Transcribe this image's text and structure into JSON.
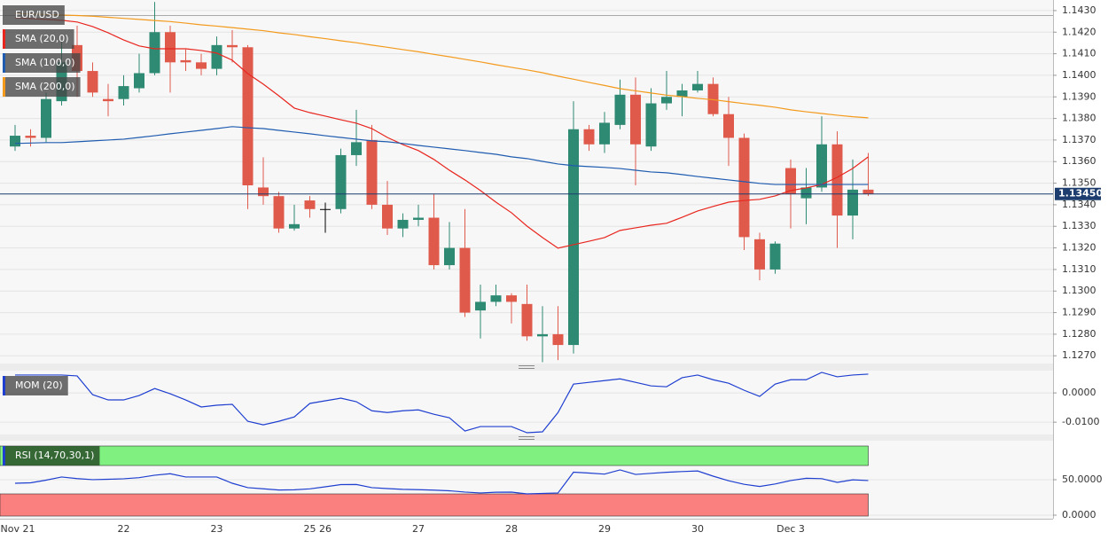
{
  "chart_data": {
    "type": "candlestick",
    "title": "EUR/USD",
    "categories": [
      "Nov 21",
      null,
      null,
      null,
      null,
      null,
      null,
      "22",
      null,
      null,
      null,
      null,
      null,
      "23",
      null,
      null,
      null,
      null,
      null,
      "25",
      "26",
      null,
      null,
      null,
      null,
      null,
      "27",
      null,
      null,
      null,
      null,
      null,
      "28",
      null,
      null,
      null,
      null,
      null,
      "29",
      null,
      null,
      null,
      null,
      null,
      "30",
      null,
      null,
      null,
      null,
      null,
      "Dec 3",
      null,
      null,
      null,
      null,
      null
    ],
    "open": [
      1.1367,
      1.1372,
      1.1371,
      1.1388,
      1.1414,
      1.1402,
      1.1389,
      1.1389,
      1.1394,
      1.1401,
      1.142,
      1.1407,
      1.1406,
      1.1403,
      1.1414,
      1.1413,
      1.1348,
      1.1344,
      1.1329,
      1.1342,
      1.1338,
      1.1338,
      1.1363,
      1.137,
      1.134,
      1.1329,
      1.1333,
      1.1334,
      1.1312,
      1.132,
      1.1291,
      1.1295,
      1.1298,
      1.1294,
      1.1279,
      1.128,
      1.1275,
      1.1375,
      1.1368,
      1.1377,
      1.1391,
      1.1367,
      1.1387,
      1.139,
      1.1393,
      1.1396,
      1.1382,
      1.1371,
      1.1324,
      1.131,
      1.1357,
      1.1343,
      1.1348,
      1.1368,
      1.1335,
      1.1347
    ],
    "high": [
      1.1377,
      1.1375,
      1.1392,
      1.1416,
      1.1423,
      1.1406,
      1.1396,
      1.14,
      1.141,
      1.1434,
      1.1423,
      1.1412,
      1.141,
      1.1418,
      1.1421,
      1.1414,
      1.1362,
      1.1346,
      1.134,
      1.1344,
      1.1341,
      1.1366,
      1.1384,
      1.1377,
      1.1351,
      1.1336,
      1.134,
      1.1345,
      1.1332,
      1.1338,
      1.1303,
      1.1303,
      1.1299,
      1.1303,
      1.1293,
      1.1293,
      1.1388,
      1.1377,
      1.1383,
      1.1398,
      1.1399,
      1.1394,
      1.1402,
      1.1396,
      1.1402,
      1.1399,
      1.139,
      1.1373,
      1.1327,
      1.1323,
      1.1361,
      1.1357,
      1.1381,
      1.1374,
      1.1361,
      1.1364
    ],
    "low": [
      1.1365,
      1.1367,
      1.1369,
      1.1386,
      1.139,
      1.139,
      1.1381,
      1.1386,
      1.1392,
      1.14,
      1.1392,
      1.1402,
      1.14,
      1.14,
      1.1406,
      1.1338,
      1.134,
      1.1327,
      1.1328,
      1.1334,
      1.1327,
      1.1336,
      1.1358,
      1.1338,
      1.1326,
      1.1325,
      1.133,
      1.131,
      1.131,
      1.1288,
      1.1278,
      1.1293,
      1.1285,
      1.1277,
      1.1267,
      1.1268,
      1.1271,
      1.1365,
      1.1364,
      1.1375,
      1.1349,
      1.1365,
      1.1384,
      1.1381,
      1.1392,
      1.1381,
      1.1358,
      1.1319,
      1.1305,
      1.1308,
      1.1329,
      1.1331,
      1.1346,
      1.132,
      1.1324,
      1.1344
    ],
    "close": [
      1.1372,
      1.1371,
      1.1389,
      1.1406,
      1.1402,
      1.1392,
      1.1388,
      1.1395,
      1.1401,
      1.142,
      1.1406,
      1.1406,
      1.1403,
      1.1414,
      1.1413,
      1.1349,
      1.1344,
      1.1329,
      1.1331,
      1.1338,
      1.1338,
      1.1363,
      1.1369,
      1.134,
      1.1329,
      1.1333,
      1.1334,
      1.1312,
      1.132,
      1.129,
      1.1295,
      1.1298,
      1.1295,
      1.1279,
      1.128,
      1.1275,
      1.1375,
      1.1368,
      1.1378,
      1.1391,
      1.1368,
      1.1387,
      1.139,
      1.1393,
      1.1396,
      1.1382,
      1.1371,
      1.1325,
      1.131,
      1.1322,
      1.1345,
      1.1348,
      1.1368,
      1.1335,
      1.1347,
      1.1345
    ],
    "up_color": "#2f8a73",
    "down_color": "#e05a4c",
    "doji_color": "#000000",
    "ylim": [
      1.12664,
      1.14349
    ],
    "yticks": [
      {
        "value": 1.127,
        "label": "1.1270"
      },
      {
        "value": 1.128,
        "label": "1.1280"
      },
      {
        "value": 1.129,
        "label": "1.1290"
      },
      {
        "value": 1.13,
        "label": "1.1300"
      },
      {
        "value": 1.131,
        "label": "1.1310"
      },
      {
        "value": 1.132,
        "label": "1.1320"
      },
      {
        "value": 1.133,
        "label": "1.1330"
      },
      {
        "value": 1.134,
        "label": "1.1340"
      },
      {
        "value": 1.135,
        "label": "1.1350"
      },
      {
        "value": 1.136,
        "label": "1.1360"
      },
      {
        "value": 1.137,
        "label": "1.1370"
      },
      {
        "value": 1.138,
        "label": "1.1380"
      },
      {
        "value": 1.139,
        "label": "1.1390"
      },
      {
        "value": 1.14,
        "label": "1.1400"
      },
      {
        "value": 1.141,
        "label": "1.1410"
      },
      {
        "value": 1.142,
        "label": "1.1420"
      },
      {
        "value": 1.143,
        "label": "1.1430"
      }
    ],
    "grid": true,
    "last_price": {
      "value": 1.1345,
      "label": "1.13450",
      "color": "#1c3d6e"
    },
    "series": [
      {
        "name": "SMA (20,0)",
        "color": "#e8261e",
        "values": [
          1.14267,
          1.14263,
          1.14259,
          1.14255,
          1.14247,
          1.14226,
          1.14197,
          1.14164,
          1.14136,
          1.14123,
          1.14123,
          1.14123,
          1.14115,
          1.14103,
          1.1407,
          1.14008,
          1.13959,
          1.13905,
          1.13848,
          1.13827,
          1.13811,
          1.13794,
          1.13778,
          1.13753,
          1.13712,
          1.13679,
          1.13651,
          1.1361,
          1.1356,
          1.13515,
          1.13466,
          1.13412,
          1.13363,
          1.13301,
          1.13248,
          1.13199,
          1.13215,
          1.13231,
          1.13248,
          1.13281,
          1.13293,
          1.13305,
          1.13314,
          1.13342,
          1.13371,
          1.13392,
          1.13412,
          1.1342,
          1.13425,
          1.13441,
          1.13466,
          1.13478,
          1.13494,
          1.13527,
          1.13568,
          1.13622
        ]
      },
      {
        "name": "SMA (100,0)",
        "color": "#1f5cb0",
        "values": [
          1.13684,
          1.13686,
          1.13688,
          1.13688,
          1.13692,
          1.13696,
          1.137,
          1.13704,
          1.13712,
          1.1372,
          1.13729,
          1.13737,
          1.13745,
          1.13753,
          1.13762,
          1.13757,
          1.13753,
          1.13745,
          1.13737,
          1.13729,
          1.1372,
          1.13712,
          1.13704,
          1.13696,
          1.13692,
          1.13684,
          1.13675,
          1.13667,
          1.13659,
          1.13651,
          1.13642,
          1.13634,
          1.13622,
          1.13614,
          1.13601,
          1.13589,
          1.13581,
          1.13577,
          1.13573,
          1.13568,
          1.1356,
          1.13552,
          1.13548,
          1.1354,
          1.13531,
          1.13523,
          1.13515,
          1.13507,
          1.13499,
          1.13494,
          1.13494,
          1.13494,
          1.13494,
          1.13494,
          1.13494,
          1.13494
        ]
      },
      {
        "name": "SMA (200,0)",
        "color": "#f39a1c",
        "values": [
          1.14287,
          1.14284,
          1.14282,
          1.14279,
          1.14277,
          1.14274,
          1.14269,
          1.14264,
          1.14259,
          1.14254,
          1.14249,
          1.14242,
          1.14234,
          1.14228,
          1.14221,
          1.14214,
          1.14207,
          1.14197,
          1.14189,
          1.14179,
          1.1417,
          1.1416,
          1.14151,
          1.1414,
          1.1413,
          1.14119,
          1.14109,
          1.14097,
          1.14086,
          1.14074,
          1.14062,
          1.14049,
          1.14037,
          1.14025,
          1.14012,
          1.13996,
          1.13982,
          1.13967,
          1.13953,
          1.13938,
          1.13928,
          1.13918,
          1.13908,
          1.13901,
          1.13893,
          1.13887,
          1.13878,
          1.13869,
          1.13861,
          1.13852,
          1.1384,
          1.13831,
          1.13823,
          1.13815,
          1.13808,
          1.13803
        ]
      }
    ],
    "indicators": [
      {
        "type": "line",
        "name": "MOM (20)",
        "color": "#1f3fd0",
        "ylim": [
          -0.0142,
          0.0076
        ],
        "yticks": [
          {
            "value": 0,
            "label": "0.0000"
          },
          {
            "value": -0.01,
            "label": "-0.0100"
          }
        ],
        "values": [
          0.0061,
          0.0061,
          0.0061,
          0.0061,
          0.0058,
          -0.0006,
          -0.0024,
          -0.0024,
          -0.0009,
          0.0015,
          -0.0003,
          -0.0024,
          -0.0048,
          -0.0042,
          -0.0039,
          -0.0097,
          -0.0109,
          -0.0097,
          -0.0082,
          -0.0036,
          -0.0027,
          -0.0018,
          -0.003,
          -0.0061,
          -0.0067,
          -0.0061,
          -0.0058,
          -0.0073,
          -0.0085,
          -0.013,
          -0.0115,
          -0.0115,
          -0.0115,
          -0.0136,
          -0.0133,
          -0.0067,
          0.003,
          0.0036,
          0.0042,
          0.0048,
          0.0036,
          0.0024,
          0.0021,
          0.0052,
          0.0061,
          0.0045,
          0.0033,
          0.0009,
          -0.0012,
          0.003,
          0.0045,
          0.0045,
          0.007,
          0.0055,
          0.0061,
          0.0064
        ]
      },
      {
        "type": "line",
        "name": "RSI (14,70,30,1)",
        "color": "#1f3fd0",
        "ylim": [
          -5,
          105
        ],
        "yticks": [
          {
            "value": 50,
            "label": "50.0000"
          },
          {
            "value": 0,
            "label": "0.0000"
          }
        ],
        "overbought": 70,
        "oversold": 30,
        "overbought_color": "#80f080",
        "oversold_color": "#fa8080",
        "values": [
          45,
          45.6,
          49.4,
          53.8,
          51.6,
          50.1,
          50.6,
          51.3,
          52.9,
          56.3,
          58.4,
          53.8,
          53.8,
          53.8,
          45,
          38.8,
          37.2,
          35.5,
          35.8,
          37.1,
          40,
          43.1,
          43.3,
          38.8,
          37.5,
          36.4,
          35.9,
          35.3,
          34.4,
          32.6,
          31.3,
          32.3,
          32.5,
          30,
          30.6,
          31.3,
          60.6,
          59.4,
          57.9,
          63.8,
          57.4,
          59,
          60.5,
          61.5,
          62.3,
          55,
          48.5,
          43.5,
          40.5,
          44,
          48.8,
          52,
          51.5,
          46.3,
          49.8,
          48.8
        ]
      }
    ]
  }
}
